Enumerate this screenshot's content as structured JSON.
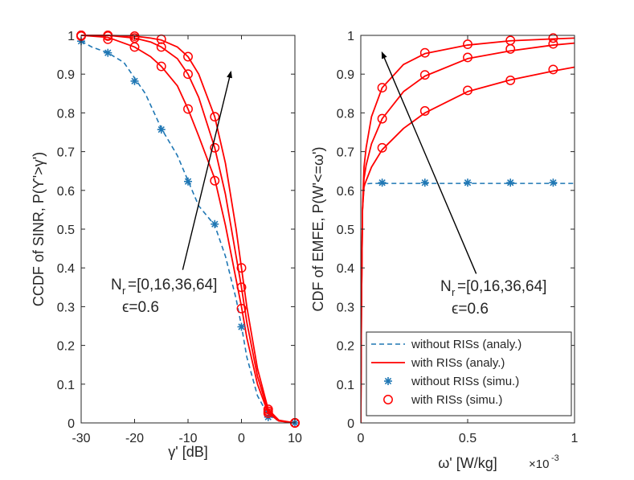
{
  "colors": {
    "without": "#1f77b4",
    "with": "#ff0000",
    "axis": "#262626",
    "arrow": "#000000"
  },
  "legend": {
    "without_analy": "without RISs (analy.)",
    "with_analy": "with RISs (analy.)",
    "without_simu": "without RISs (simu.)",
    "with_simu": "with RISs (simu.)"
  },
  "chart_data": [
    {
      "type": "line",
      "title": "",
      "xlabel": "γ' [dB]",
      "ylabel": "CCDF of SINR, P(ϒ'>γ')",
      "xlim": [
        -30,
        10
      ],
      "ylim": [
        0,
        1
      ],
      "xticks": [
        -30,
        -20,
        -10,
        0,
        10
      ],
      "xtick_labels": [
        "-30",
        "-20",
        "-10",
        "0",
        "10"
      ],
      "yticks": [
        0,
        0.1,
        0.2,
        0.3,
        0.4,
        0.5,
        0.6,
        0.7,
        0.8,
        0.9,
        1
      ],
      "ytick_labels": [
        "0",
        "0.1",
        "0.2",
        "0.3",
        "0.4",
        "0.5",
        "0.6",
        "0.7",
        "0.8",
        "0.9",
        "1"
      ],
      "annotation": {
        "nr_base": "N",
        "nr_sub": "r",
        "nr_text": "=[0,16,36,64]",
        "eps_text": "ϵ=0.6"
      },
      "arrow": {
        "from": [
          -11,
          0.395
        ],
        "to": [
          -2,
          0.905
        ]
      },
      "series": [
        {
          "name": "without RISs (analy.)",
          "style": "dashed",
          "x": [
            -30,
            -28,
            -25,
            -22,
            -20,
            -18,
            -15,
            -12,
            -10,
            -8,
            -5,
            -3,
            -1,
            0,
            1,
            3,
            5,
            7,
            10
          ],
          "y": [
            0.985,
            0.97,
            0.955,
            0.93,
            0.89,
            0.85,
            0.76,
            0.69,
            0.625,
            0.56,
            0.51,
            0.43,
            0.32,
            0.25,
            0.17,
            0.07,
            0.02,
            0.005,
            0.0
          ]
        },
        {
          "name": "without RISs (simu.)",
          "style": "marker-star",
          "x": [
            -30,
            -25,
            -20,
            -15,
            -10,
            -5,
            0,
            5,
            10
          ],
          "y": [
            0.985,
            0.955,
            0.882,
            0.757,
            0.623,
            0.513,
            0.248,
            0.015,
            0.0
          ]
        },
        {
          "name": "with RISs (analy.) Nr=16",
          "style": "solid",
          "x": [
            -30,
            -25,
            -20,
            -17,
            -15,
            -12,
            -10,
            -8,
            -5,
            -3,
            -1,
            0,
            1,
            3,
            5,
            7,
            10
          ],
          "y": [
            1,
            0.995,
            0.97,
            0.945,
            0.92,
            0.87,
            0.81,
            0.74,
            0.63,
            0.51,
            0.37,
            0.3,
            0.22,
            0.1,
            0.025,
            0.005,
            0
          ]
        },
        {
          "name": "with RISs (analy.) Nr=36",
          "style": "solid",
          "x": [
            -30,
            -25,
            -20,
            -17,
            -15,
            -12,
            -10,
            -8,
            -5,
            -3,
            -1,
            0,
            1,
            3,
            5,
            7,
            10
          ],
          "y": [
            1,
            1,
            0.993,
            0.983,
            0.97,
            0.94,
            0.9,
            0.84,
            0.71,
            0.59,
            0.43,
            0.35,
            0.26,
            0.12,
            0.03,
            0.006,
            0
          ]
        },
        {
          "name": "with RISs (analy.) Nr=64",
          "style": "solid",
          "x": [
            -30,
            -25,
            -20,
            -17,
            -15,
            -12,
            -10,
            -8,
            -5,
            -3,
            -1,
            0,
            1,
            3,
            5,
            7,
            10
          ],
          "y": [
            1,
            1,
            0.998,
            0.993,
            0.988,
            0.97,
            0.945,
            0.9,
            0.79,
            0.67,
            0.5,
            0.4,
            0.3,
            0.14,
            0.035,
            0.007,
            0
          ]
        },
        {
          "name": "with RISs (simu.)",
          "style": "marker-circle",
          "x": [
            -30,
            -25,
            -20,
            -15,
            -10,
            -5,
            0,
            5,
            10,
            -30,
            -25,
            -20,
            -15,
            -10,
            -5,
            0,
            5,
            10,
            -30,
            -25,
            -20,
            -15,
            -10,
            -5,
            0,
            5,
            10
          ],
          "y": [
            0.998,
            0.99,
            0.97,
            0.92,
            0.81,
            0.625,
            0.295,
            0.025,
            0,
            1,
            0.998,
            0.993,
            0.97,
            0.9,
            0.71,
            0.35,
            0.03,
            0,
            1,
            1,
            0.998,
            0.99,
            0.945,
            0.79,
            0.4,
            0.035,
            0
          ]
        }
      ]
    },
    {
      "type": "line",
      "title": "",
      "xlabel": "ω' [W/kg]",
      "x_exponent_base": "×10",
      "x_exponent_power": "-3",
      "ylabel": "CDF of EMFE, P(W'<=ω')",
      "xlim": [
        0,
        1
      ],
      "ylim": [
        0,
        1
      ],
      "xticks": [
        0,
        0.5,
        1
      ],
      "xtick_labels": [
        "0",
        "0.5",
        "1"
      ],
      "yticks": [
        0,
        0.1,
        0.2,
        0.3,
        0.4,
        0.5,
        0.6,
        0.7,
        0.8,
        0.9,
        1
      ],
      "ytick_labels": [
        "0",
        "0.1",
        "0.2",
        "0.3",
        "0.4",
        "0.5",
        "0.6",
        "0.7",
        "0.8",
        "0.9",
        "1"
      ],
      "annotation": {
        "nr_base": "N",
        "nr_sub": "r",
        "nr_text": "=[0,16,36,64]",
        "eps_text": "ϵ=0.6"
      },
      "arrow": {
        "from": [
          0.54,
          0.385
        ],
        "to": [
          0.1,
          0.955
        ]
      },
      "legend_position": "bottom-right",
      "series": [
        {
          "name": "without RISs (analy.)",
          "style": "dashed",
          "x": [
            0,
            0.003,
            0.008,
            0.015,
            0.025,
            0.05,
            0.1,
            0.3,
            0.5,
            0.7,
            0.9,
            1
          ],
          "y": [
            0,
            0.3,
            0.55,
            0.61,
            0.617,
            0.618,
            0.618,
            0.618,
            0.618,
            0.618,
            0.618,
            0.618
          ]
        },
        {
          "name": "without RISs (simu.)",
          "style": "marker-star",
          "x": [
            0.1,
            0.3,
            0.5,
            0.7,
            0.9
          ],
          "y": [
            0.62,
            0.62,
            0.62,
            0.62,
            0.62
          ]
        },
        {
          "name": "with RISs (analy.) Nr=16",
          "style": "solid",
          "x": [
            0,
            0.003,
            0.008,
            0.015,
            0.025,
            0.05,
            0.1,
            0.2,
            0.3,
            0.5,
            0.7,
            0.9,
            1
          ],
          "y": [
            0,
            0.3,
            0.55,
            0.61,
            0.625,
            0.66,
            0.705,
            0.76,
            0.8,
            0.855,
            0.885,
            0.908,
            0.918
          ]
        },
        {
          "name": "with RISs (analy.) Nr=36",
          "style": "solid",
          "x": [
            0,
            0.003,
            0.008,
            0.015,
            0.025,
            0.05,
            0.1,
            0.2,
            0.3,
            0.5,
            0.7,
            0.9,
            1
          ],
          "y": [
            0,
            0.3,
            0.55,
            0.63,
            0.665,
            0.72,
            0.785,
            0.855,
            0.895,
            0.94,
            0.96,
            0.975,
            0.98
          ]
        },
        {
          "name": "with RISs (analy.) Nr=64",
          "style": "solid",
          "x": [
            0,
            0.003,
            0.008,
            0.015,
            0.025,
            0.05,
            0.1,
            0.2,
            0.3,
            0.5,
            0.7,
            0.9,
            1
          ],
          "y": [
            0,
            0.3,
            0.55,
            0.66,
            0.71,
            0.79,
            0.865,
            0.925,
            0.953,
            0.975,
            0.986,
            0.991,
            0.993
          ]
        },
        {
          "name": "with RISs (simu.)",
          "style": "marker-circle",
          "x": [
            0.1,
            0.3,
            0.5,
            0.7,
            0.9,
            0.1,
            0.3,
            0.5,
            0.7,
            0.9,
            0.1,
            0.3,
            0.5,
            0.7,
            0.9
          ],
          "y": [
            0.71,
            0.805,
            0.858,
            0.884,
            0.912,
            0.785,
            0.898,
            0.943,
            0.965,
            0.978,
            0.865,
            0.955,
            0.977,
            0.987,
            0.993
          ]
        }
      ]
    }
  ]
}
